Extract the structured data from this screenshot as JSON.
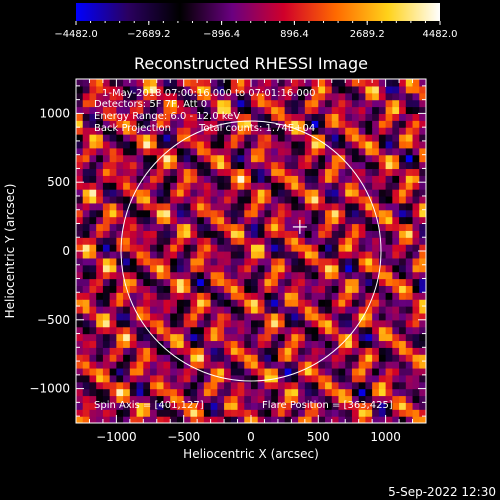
{
  "chart_data": {
    "type": "heatmap",
    "title": "Reconstructed RHESSI Image",
    "xlabel": "Heliocentric X (arcsec)",
    "ylabel": "Heliocentric Y (arcsec)",
    "xlim": [
      -1300,
      1300
    ],
    "ylim": [
      -1250,
      1250
    ],
    "x_ticks": [
      -1000,
      -500,
      0,
      500,
      1000
    ],
    "y_ticks": [
      -1000,
      -500,
      0,
      500,
      1000
    ],
    "colorbar": {
      "range": [
        -4482.0,
        4482.0
      ],
      "tick_labels": [
        "−4482.0",
        "−2689.2",
        "−896.4",
        "896.4",
        "2689.2",
        "4482.0"
      ],
      "colormap": [
        "#0000ff",
        "#2a0060",
        "#000000",
        "#6a0080",
        "#d0002a",
        "#ff6a00",
        "#ffd21a",
        "#ffffff"
      ]
    },
    "annotations": {
      "time_range": "1-May-2018 07:00:16.000 to 07:01:16.000",
      "detectors": "Detectors: 5F 7F, Att 0",
      "energy_range": "Energy Range: 6.0 - 12.0 keV",
      "method": "Back Projection",
      "total_counts": "Total counts: 1.74E+04",
      "spin_axis": "Spin Axis = [401,127]",
      "flare_position": "Flare Position = [363,425]"
    },
    "solar_limb_radius_arcsec": 955,
    "flare_position": [
      363,
      425
    ],
    "timestamp": "5-Sep-2022 12:30"
  }
}
